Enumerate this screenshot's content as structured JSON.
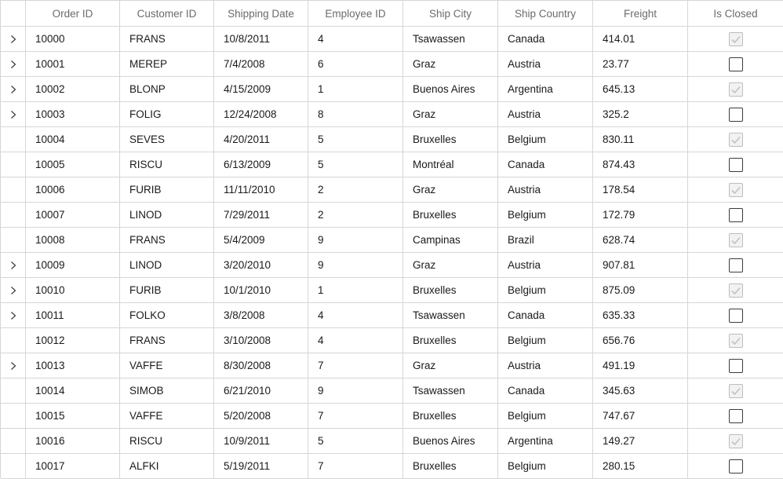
{
  "grid": {
    "columns": [
      {
        "key": "expander",
        "label": ""
      },
      {
        "key": "order_id",
        "label": "Order ID"
      },
      {
        "key": "customer_id",
        "label": "Customer ID"
      },
      {
        "key": "shipping_date",
        "label": "Shipping Date"
      },
      {
        "key": "employee_id",
        "label": "Employee ID"
      },
      {
        "key": "ship_city",
        "label": "Ship City"
      },
      {
        "key": "ship_country",
        "label": "Ship Country"
      },
      {
        "key": "freight",
        "label": "Freight"
      },
      {
        "key": "is_closed",
        "label": "Is Closed"
      }
    ],
    "expander_icon": "chevron-right-icon",
    "colors": {
      "grid_line": "#d6d6d6",
      "header_text": "#6b6b6b",
      "checkbox_border": "#3b3b3b",
      "checkbox_checked_fill": "#f2f2f2",
      "checkbox_checked_mark": "#c2c2c2"
    },
    "rows": [
      {
        "expandable": true,
        "order_id": "10000",
        "customer_id": "FRANS",
        "shipping_date": "10/8/2011",
        "employee_id": "4",
        "ship_city": "Tsawassen",
        "ship_country": "Canada",
        "freight": "414.01",
        "is_closed": true
      },
      {
        "expandable": true,
        "order_id": "10001",
        "customer_id": "MEREP",
        "shipping_date": "7/4/2008",
        "employee_id": "6",
        "ship_city": "Graz",
        "ship_country": "Austria",
        "freight": "23.77",
        "is_closed": false
      },
      {
        "expandable": true,
        "order_id": "10002",
        "customer_id": "BLONP",
        "shipping_date": "4/15/2009",
        "employee_id": "1",
        "ship_city": "Buenos Aires",
        "ship_country": "Argentina",
        "freight": "645.13",
        "is_closed": true
      },
      {
        "expandable": true,
        "order_id": "10003",
        "customer_id": "FOLIG",
        "shipping_date": "12/24/2008",
        "employee_id": "8",
        "ship_city": "Graz",
        "ship_country": "Austria",
        "freight": "325.2",
        "is_closed": false
      },
      {
        "expandable": false,
        "order_id": "10004",
        "customer_id": "SEVES",
        "shipping_date": "4/20/2011",
        "employee_id": "5",
        "ship_city": "Bruxelles",
        "ship_country": "Belgium",
        "freight": "830.11",
        "is_closed": true
      },
      {
        "expandable": false,
        "order_id": "10005",
        "customer_id": "RISCU",
        "shipping_date": "6/13/2009",
        "employee_id": "5",
        "ship_city": "Montréal",
        "ship_country": "Canada",
        "freight": "874.43",
        "is_closed": false
      },
      {
        "expandable": false,
        "order_id": "10006",
        "customer_id": "FURIB",
        "shipping_date": "11/11/2010",
        "employee_id": "2",
        "ship_city": "Graz",
        "ship_country": "Austria",
        "freight": "178.54",
        "is_closed": true
      },
      {
        "expandable": false,
        "order_id": "10007",
        "customer_id": "LINOD",
        "shipping_date": "7/29/2011",
        "employee_id": "2",
        "ship_city": "Bruxelles",
        "ship_country": "Belgium",
        "freight": "172.79",
        "is_closed": false
      },
      {
        "expandable": false,
        "order_id": "10008",
        "customer_id": "FRANS",
        "shipping_date": "5/4/2009",
        "employee_id": "9",
        "ship_city": "Campinas",
        "ship_country": "Brazil",
        "freight": "628.74",
        "is_closed": true
      },
      {
        "expandable": true,
        "order_id": "10009",
        "customer_id": "LINOD",
        "shipping_date": "3/20/2010",
        "employee_id": "9",
        "ship_city": "Graz",
        "ship_country": "Austria",
        "freight": "907.81",
        "is_closed": false
      },
      {
        "expandable": true,
        "order_id": "10010",
        "customer_id": "FURIB",
        "shipping_date": "10/1/2010",
        "employee_id": "1",
        "ship_city": "Bruxelles",
        "ship_country": "Belgium",
        "freight": "875.09",
        "is_closed": true
      },
      {
        "expandable": true,
        "order_id": "10011",
        "customer_id": "FOLKO",
        "shipping_date": "3/8/2008",
        "employee_id": "4",
        "ship_city": "Tsawassen",
        "ship_country": "Canada",
        "freight": "635.33",
        "is_closed": false
      },
      {
        "expandable": false,
        "order_id": "10012",
        "customer_id": "FRANS",
        "shipping_date": "3/10/2008",
        "employee_id": "4",
        "ship_city": "Bruxelles",
        "ship_country": "Belgium",
        "freight": "656.76",
        "is_closed": true
      },
      {
        "expandable": true,
        "order_id": "10013",
        "customer_id": "VAFFE",
        "shipping_date": "8/30/2008",
        "employee_id": "7",
        "ship_city": "Graz",
        "ship_country": "Austria",
        "freight": "491.19",
        "is_closed": false
      },
      {
        "expandable": false,
        "order_id": "10014",
        "customer_id": "SIMOB",
        "shipping_date": "6/21/2010",
        "employee_id": "9",
        "ship_city": "Tsawassen",
        "ship_country": "Canada",
        "freight": "345.63",
        "is_closed": true
      },
      {
        "expandable": false,
        "order_id": "10015",
        "customer_id": "VAFFE",
        "shipping_date": "5/20/2008",
        "employee_id": "7",
        "ship_city": "Bruxelles",
        "ship_country": "Belgium",
        "freight": "747.67",
        "is_closed": false
      },
      {
        "expandable": false,
        "order_id": "10016",
        "customer_id": "RISCU",
        "shipping_date": "10/9/2011",
        "employee_id": "5",
        "ship_city": "Buenos Aires",
        "ship_country": "Argentina",
        "freight": "149.27",
        "is_closed": true
      },
      {
        "expandable": false,
        "order_id": "10017",
        "customer_id": "ALFKI",
        "shipping_date": "5/19/2011",
        "employee_id": "7",
        "ship_city": "Bruxelles",
        "ship_country": "Belgium",
        "freight": "280.15",
        "is_closed": false
      }
    ]
  }
}
